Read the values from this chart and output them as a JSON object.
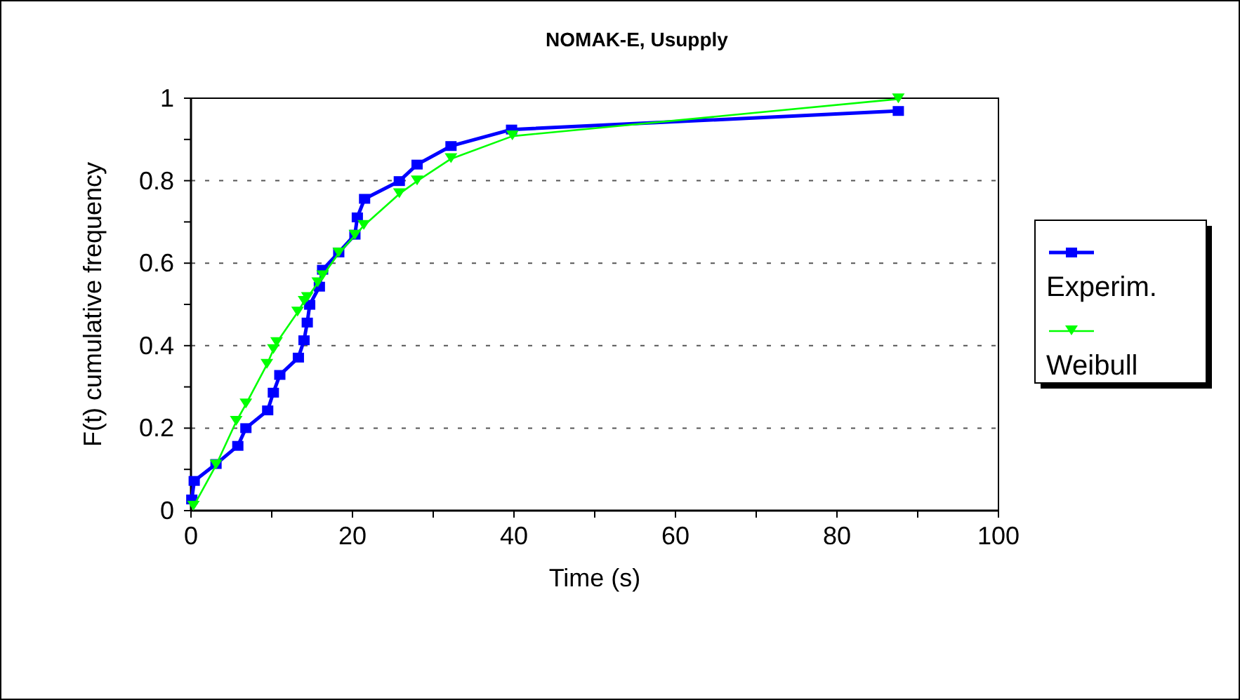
{
  "chart_data": {
    "type": "line",
    "title": "NOMAK-E, Usupply",
    "xlabel": "Time (s)",
    "ylabel": "F(t) cumulative frequency",
    "xlim": [
      0,
      100
    ],
    "xticks": [
      0,
      {
        "value": 10,
        "label": null
      },
      20,
      {
        "value": 30,
        "label": null
      },
      40,
      {
        "value": 50,
        "label": null
      },
      60,
      {
        "value": 70,
        "label": null
      },
      80,
      {
        "value": 90,
        "label": null
      },
      100
    ],
    "ylim": [
      0,
      1
    ],
    "yticks": [
      0,
      {
        "value": 0.1,
        "label": null
      },
      0.2,
      {
        "value": 0.3,
        "label": null
      },
      0.4,
      {
        "value": 0.5,
        "label": null
      },
      0.6,
      {
        "value": 0.7,
        "label": null
      },
      0.8,
      {
        "value": 0.9,
        "label": null
      },
      1
    ],
    "grid": "y",
    "legend": "right",
    "line_style": "solid",
    "series": [
      {
        "name": "Experim.",
        "color": "#0000ff",
        "marker": "square",
        "x": [
          0.1,
          0.4,
          3.1,
          5.8,
          6.8,
          9.5,
          10.2,
          11.0,
          13.3,
          14.0,
          14.4,
          14.7,
          15.9,
          16.3,
          18.3,
          20.3,
          20.6,
          21.5,
          25.8,
          28.0,
          32.2,
          39.7,
          87.6
        ],
        "values": [
          0.027,
          0.072,
          0.113,
          0.157,
          0.2,
          0.243,
          0.286,
          0.329,
          0.371,
          0.413,
          0.456,
          0.499,
          0.543,
          0.584,
          0.626,
          0.669,
          0.711,
          0.756,
          0.799,
          0.839,
          0.884,
          0.924,
          0.969
        ]
      },
      {
        "name": "Weibull",
        "color": "#00ff00",
        "marker": "triangle",
        "x": [
          0.3,
          3.1,
          5.6,
          6.8,
          9.4,
          10.2,
          10.6,
          13.2,
          14.0,
          14.4,
          15.7,
          16.3,
          18.3,
          20.3,
          21.4,
          25.8,
          28.0,
          32.2,
          39.8,
          87.6
        ],
        "values": [
          0.01,
          0.11,
          0.216,
          0.258,
          0.354,
          0.39,
          0.407,
          0.481,
          0.507,
          0.516,
          0.552,
          0.569,
          0.624,
          0.667,
          0.691,
          0.768,
          0.799,
          0.853,
          0.908,
          0.998
        ]
      }
    ]
  }
}
